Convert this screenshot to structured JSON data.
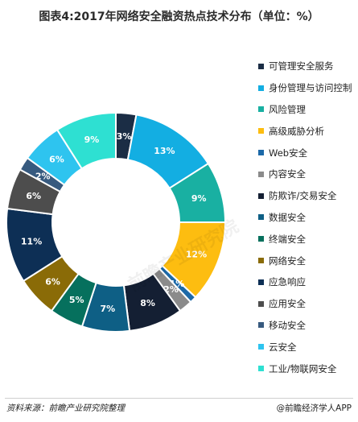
{
  "title": "图表4:2017年网络安全融资热点技术分布（单位：%）",
  "source": "资料来源：前瞻产业研究院整理",
  "brand": "@前瞻经济学人APP",
  "watermark": "前瞻产业研究院",
  "chart_data": {
    "type": "pie",
    "donut": true,
    "unit": "%",
    "legend_position": "right",
    "title": "图表4:2017年网络安全融资热点技术分布（单位：%）",
    "slices": [
      {
        "label": "可管理安全服务",
        "value": 3,
        "color": "#1b2d45"
      },
      {
        "label": "身份管理与访问控制",
        "value": 13,
        "color": "#13aee2"
      },
      {
        "label": "风险管理",
        "value": 9,
        "color": "#19b0a2"
      },
      {
        "label": "高级威胁分析",
        "value": 12,
        "color": "#fdbd10"
      },
      {
        "label": "Web安全",
        "value": 1,
        "color": "#1c69a8"
      },
      {
        "label": "内容安全",
        "value": 2,
        "color": "#8b8b8b"
      },
      {
        "label": "防欺诈/交易安全",
        "value": 8,
        "color": "#141f33"
      },
      {
        "label": "数据安全",
        "value": 7,
        "color": "#0e5f85"
      },
      {
        "label": "终端安全",
        "value": 5,
        "color": "#06705d"
      },
      {
        "label": "网络安全",
        "value": 6,
        "color": "#8a6b07"
      },
      {
        "label": "应急响应",
        "value": 11,
        "color": "#0d2f55"
      },
      {
        "label": "应用安全",
        "value": 6,
        "color": "#4d4d4d"
      },
      {
        "label": "移动安全",
        "value": 2,
        "color": "#375a7f"
      },
      {
        "label": "云安全",
        "value": 6,
        "color": "#2ec4ef"
      },
      {
        "label": "工业/物联网安全",
        "value": 9,
        "color": "#2ee0d2"
      }
    ]
  }
}
